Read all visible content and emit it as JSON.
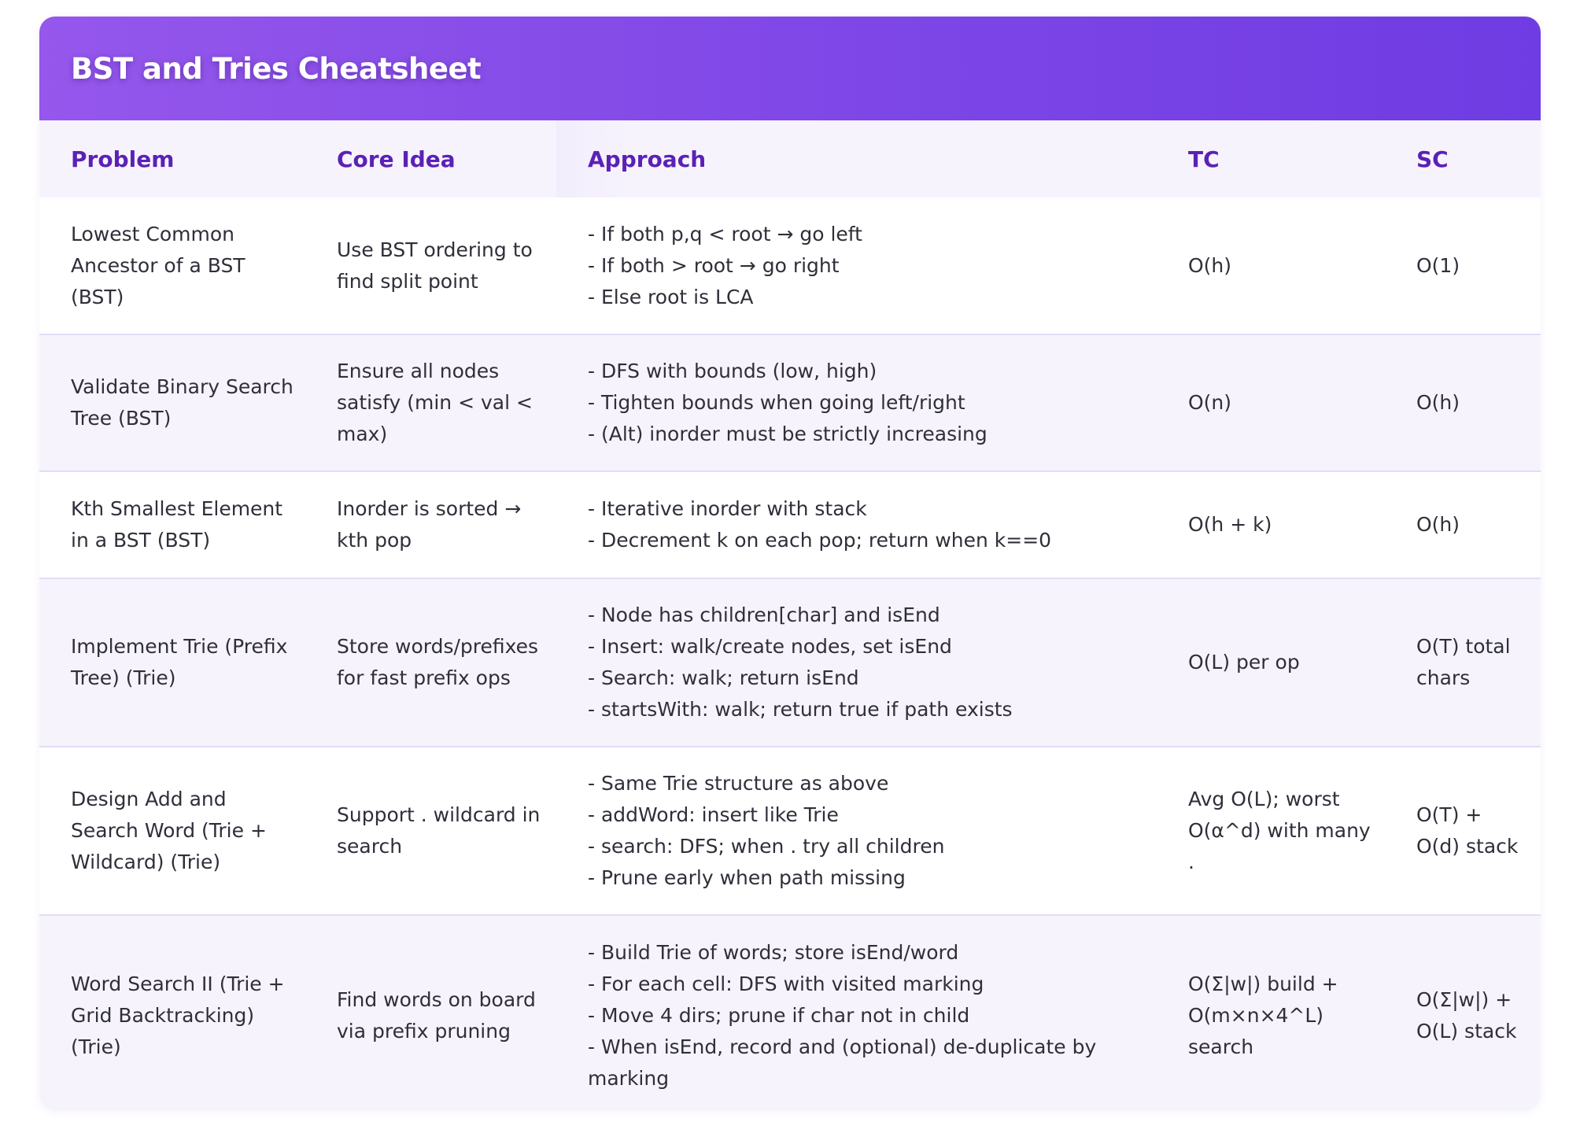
{
  "title": "BST and Tries Cheatsheet",
  "columns": {
    "problem": "Problem",
    "core": "Core Idea",
    "approach": "Approach",
    "tc": "TC",
    "sc": "SC"
  },
  "rows": [
    {
      "problem": "Lowest Common Ancestor of a BST (BST)",
      "core": "Use BST ordering to find split point",
      "approach": [
        "- If both p,q < root → go left",
        "- If both > root → go right",
        "- Else root is LCA"
      ],
      "tc": "O(h)",
      "sc": "O(1)"
    },
    {
      "problem": "Validate Binary Search Tree (BST)",
      "core": "Ensure all nodes satisfy (min < val < max)",
      "approach": [
        "- DFS with bounds (low, high)",
        "- Tighten bounds when going left/right",
        "- (Alt) inorder must be strictly increasing"
      ],
      "tc": "O(n)",
      "sc": "O(h)"
    },
    {
      "problem": "Kth Smallest Element in a BST (BST)",
      "core": "Inorder is sorted → kth pop",
      "approach": [
        "- Iterative inorder with stack",
        "- Decrement k on each pop; return when k==0"
      ],
      "tc": "O(h + k)",
      "sc": "O(h)"
    },
    {
      "problem": "Implement Trie (Prefix Tree) (Trie)",
      "core": "Store words/prefixes for fast prefix ops",
      "approach": [
        "- Node has children[char] and isEnd",
        "- Insert: walk/create nodes, set isEnd",
        "- Search: walk; return isEnd",
        "- startsWith: walk; return true if path exists"
      ],
      "tc": "O(L) per op",
      "sc": "O(T) total chars"
    },
    {
      "problem": "Design Add and Search Word (Trie + Wildcard) (Trie)",
      "core": "Support . wildcard in search",
      "approach": [
        "- Same Trie structure as above",
        "- addWord: insert like Trie",
        "- search: DFS; when . try all children",
        "- Prune early when path missing"
      ],
      "tc": "Avg O(L); worst O(α^d) with many .",
      "sc": "O(T) + O(d) stack"
    },
    {
      "problem": "Word Search II (Trie + Grid Backtracking) (Trie)",
      "core": "Find words on board via prefix pruning",
      "approach": [
        "- Build Trie of words; store isEnd/word",
        "- For each cell: DFS with visited marking",
        "- Move 4 dirs; prune if char not in child",
        "- When isEnd, record and (optional) de-duplicate by marking"
      ],
      "tc": "O(Σ|w|) build + O(m×n×4^L) search",
      "sc": "O(Σ|w|) + O(L) stack"
    }
  ]
}
